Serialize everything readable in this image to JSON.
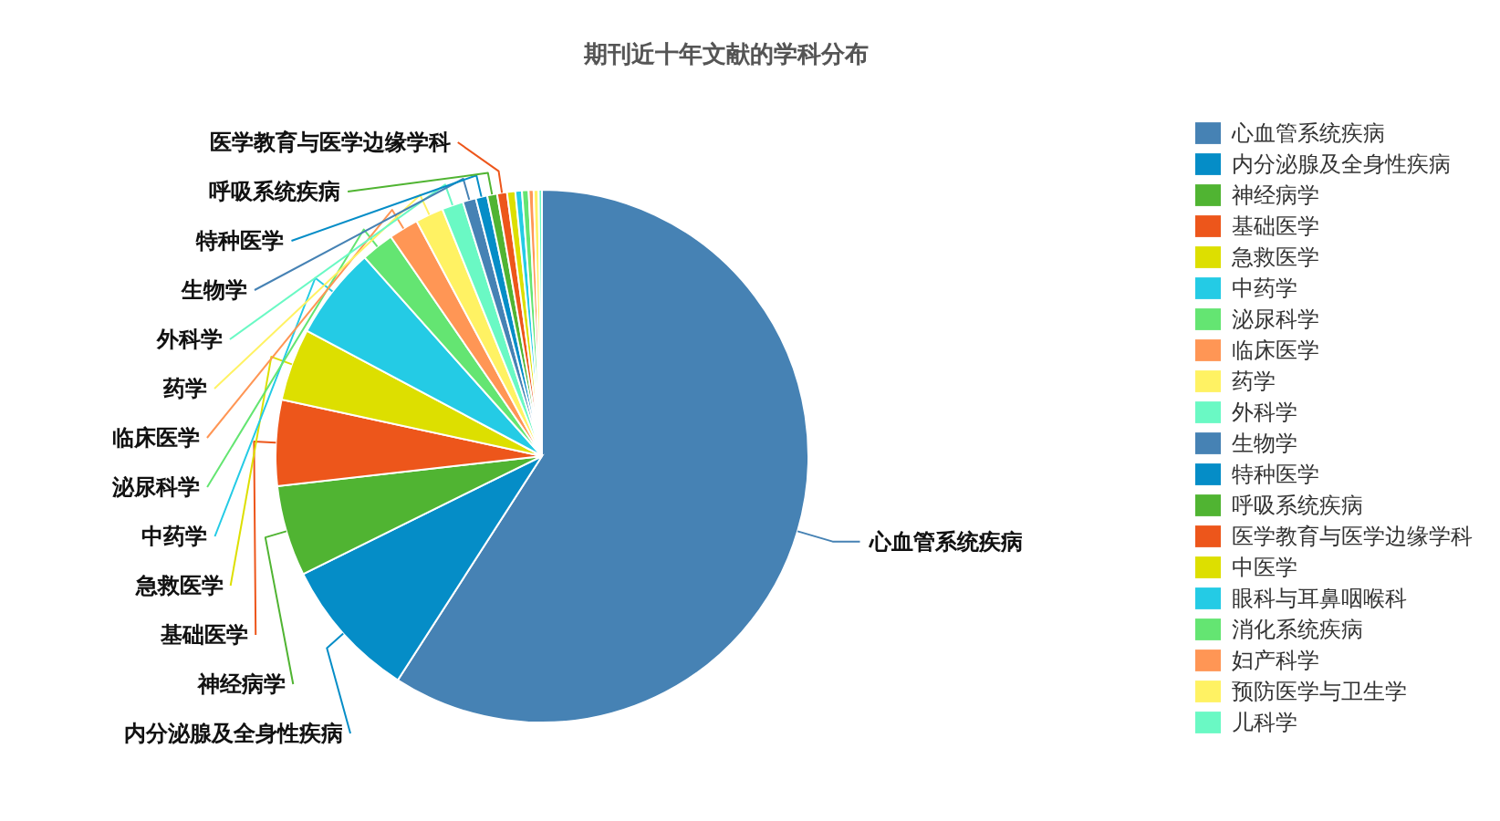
{
  "chart_data": {
    "type": "pie",
    "title": "期刊近十年文献的学科分布",
    "categories": [
      "心血管系统疾病",
      "内分泌腺及全身性疾病",
      "神经病学",
      "基础医学",
      "急救医学",
      "中药学",
      "泌尿科学",
      "临床医学",
      "药学",
      "外科学",
      "生物学",
      "特种医学",
      "呼吸系统疾病",
      "医学教育与医学边缘学科",
      "中医学",
      "眼科与耳鼻咽喉科",
      "消化系统疾病",
      "妇产科学",
      "预防医学与卫生学",
      "儿科学"
    ],
    "values": [
      59.1,
      8.6,
      5.5,
      5.2,
      4.4,
      5.6,
      2.0,
      1.8,
      1.7,
      1.3,
      0.8,
      0.7,
      0.6,
      0.6,
      0.5,
      0.4,
      0.4,
      0.3,
      0.3,
      0.2
    ],
    "colors": [
      "#4682b4",
      "#058dc7",
      "#50b432",
      "#ed561b",
      "#dddf00",
      "#24cbe5",
      "#64e572",
      "#ff9655",
      "#fff263",
      "#6af9c4",
      "#4682b4",
      "#058dc7",
      "#50b432",
      "#ed561b",
      "#dddf00",
      "#24cbe5",
      "#64e572",
      "#ff9655",
      "#fff263",
      "#6af9c4"
    ],
    "legend": "right"
  }
}
